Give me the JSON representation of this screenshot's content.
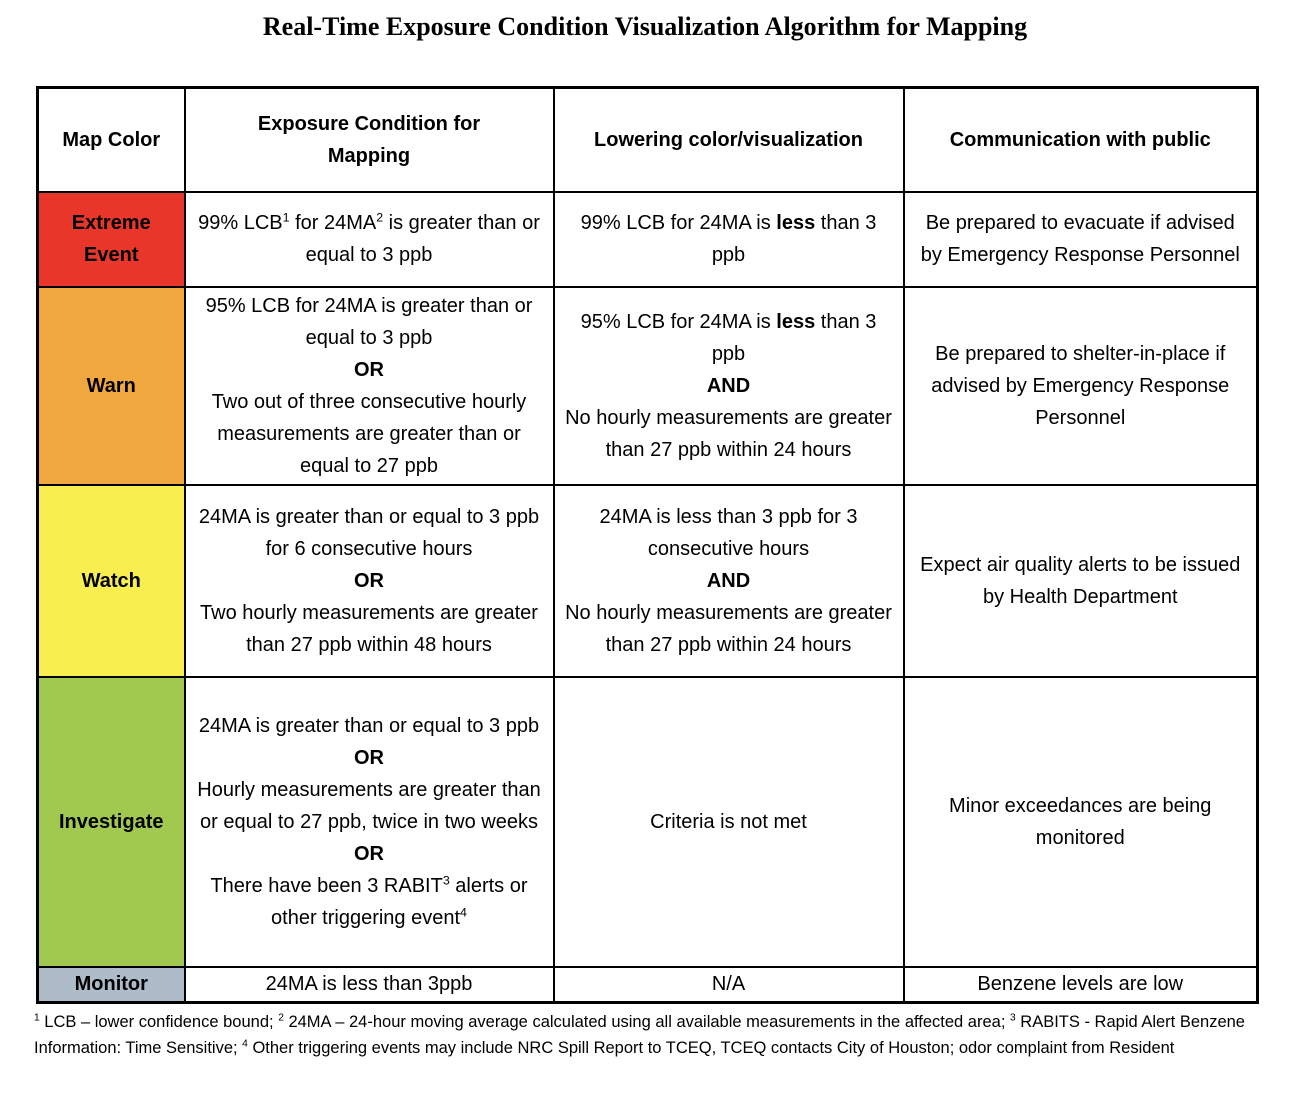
{
  "title": "Real-Time Exposure Condition Visualization Algorithm for Mapping",
  "colors": {
    "border": "#000000",
    "extreme": "#e8362a",
    "warn": "#f0a73e",
    "watch": "#f8ee4f",
    "investigate": "#a2c94f",
    "monitor": "#aebbc9"
  },
  "table": {
    "headers": [
      "Map Color",
      "Exposure Condition for Mapping",
      "Lowering color/visualization",
      "Communication with public"
    ],
    "rows": [
      {
        "id": "extreme-event",
        "label": "Extreme Event",
        "color_key": "extreme",
        "cells": {
          "exposure": [
            [
              {
                "t": "99% LCB"
              },
              {
                "t": "1",
                "sup": true
              },
              {
                "t": " for 24MA"
              },
              {
                "t": "2",
                "sup": true
              },
              {
                "t": " is greater than or equal to 3 ppb"
              }
            ]
          ],
          "lowering": [
            [
              {
                "t": "99% LCB for 24MA is "
              },
              {
                "t": "less",
                "b": true
              },
              {
                "t": " than 3 ppb"
              }
            ]
          ],
          "communication": [
            [
              {
                "t": "Be prepared to evacuate if advised by Emergency Response Personnel"
              }
            ]
          ]
        }
      },
      {
        "id": "warn",
        "label": "Warn",
        "color_key": "warn",
        "cells": {
          "exposure": [
            [
              {
                "t": "95% LCB for 24MA is greater than or equal to 3 ppb"
              }
            ],
            [
              {
                "t": "OR",
                "b": true
              }
            ],
            [
              {
                "t": "Two out of three consecutive hourly measurements are greater than or equal to 27 ppb"
              }
            ]
          ],
          "lowering": [
            [
              {
                "t": "95% LCB for 24MA is "
              },
              {
                "t": "less",
                "b": true
              },
              {
                "t": " than 3 ppb"
              }
            ],
            [
              {
                "t": "AND",
                "b": true
              }
            ],
            [
              {
                "t": "No hourly measurements are greater than 27 ppb within 24 hours"
              }
            ]
          ],
          "communication": [
            [
              {
                "t": "Be prepared to shelter-in-place if advised by Emergency Response Personnel"
              }
            ]
          ]
        }
      },
      {
        "id": "watch",
        "label": "Watch",
        "color_key": "watch",
        "cells": {
          "exposure": [
            [
              {
                "t": "24MA is greater than or equal to 3 ppb for 6 consecutive hours"
              }
            ],
            [
              {
                "t": "OR",
                "b": true
              }
            ],
            [
              {
                "t": "Two hourly measurements are greater than 27 ppb within 48 hours"
              }
            ]
          ],
          "lowering": [
            [
              {
                "t": "24MA is less than 3 ppb for 3 consecutive hours"
              }
            ],
            [
              {
                "t": "AND",
                "b": true
              }
            ],
            [
              {
                "t": "No hourly measurements are greater than 27 ppb within 24 hours"
              }
            ]
          ],
          "communication": [
            [
              {
                "t": "Expect air quality alerts to be issued by Health Department"
              }
            ]
          ]
        }
      },
      {
        "id": "investigate",
        "label": "Investigate",
        "color_key": "investigate",
        "cells": {
          "exposure": [
            [
              {
                "t": "24MA is greater than or equal to 3 ppb"
              }
            ],
            [
              {
                "t": "OR",
                "b": true
              }
            ],
            [
              {
                "t": "Hourly measurements are greater than or equal to 27 ppb, twice in two weeks"
              }
            ],
            [
              {
                "t": "OR",
                "b": true
              }
            ],
            [
              {
                "t": "There have been 3 RABIT"
              },
              {
                "t": "3",
                "sup": true
              },
              {
                "t": " alerts or other triggering event"
              },
              {
                "t": "4",
                "sup": true
              }
            ]
          ],
          "lowering": [
            [
              {
                "t": "Criteria is not met"
              }
            ]
          ],
          "communication": [
            [
              {
                "t": "Minor exceedances are being monitored"
              }
            ]
          ]
        }
      },
      {
        "id": "monitor",
        "label": "Monitor",
        "color_key": "monitor",
        "cells": {
          "exposure": [
            [
              {
                "t": "24MA is less than 3ppb"
              }
            ]
          ],
          "lowering": [
            [
              {
                "t": "N/A"
              }
            ]
          ],
          "communication": [
            [
              {
                "t": "Benzene levels are low"
              }
            ]
          ]
        }
      }
    ]
  },
  "footnote": [
    {
      "t": "1",
      "sup": true
    },
    {
      "t": " LCB – lower confidence bound; "
    },
    {
      "t": "2",
      "sup": true
    },
    {
      "t": " 24MA – 24-hour moving average calculated using all available measurements in the affected area; "
    },
    {
      "t": "3",
      "sup": true
    },
    {
      "t": " RABITS - Rapid Alert Benzene Information: Time Sensitive; "
    },
    {
      "t": "4",
      "sup": true
    },
    {
      "t": " Other triggering events may include NRC Spill Report to TCEQ, TCEQ contacts City of Houston; odor complaint from Resident"
    }
  ]
}
